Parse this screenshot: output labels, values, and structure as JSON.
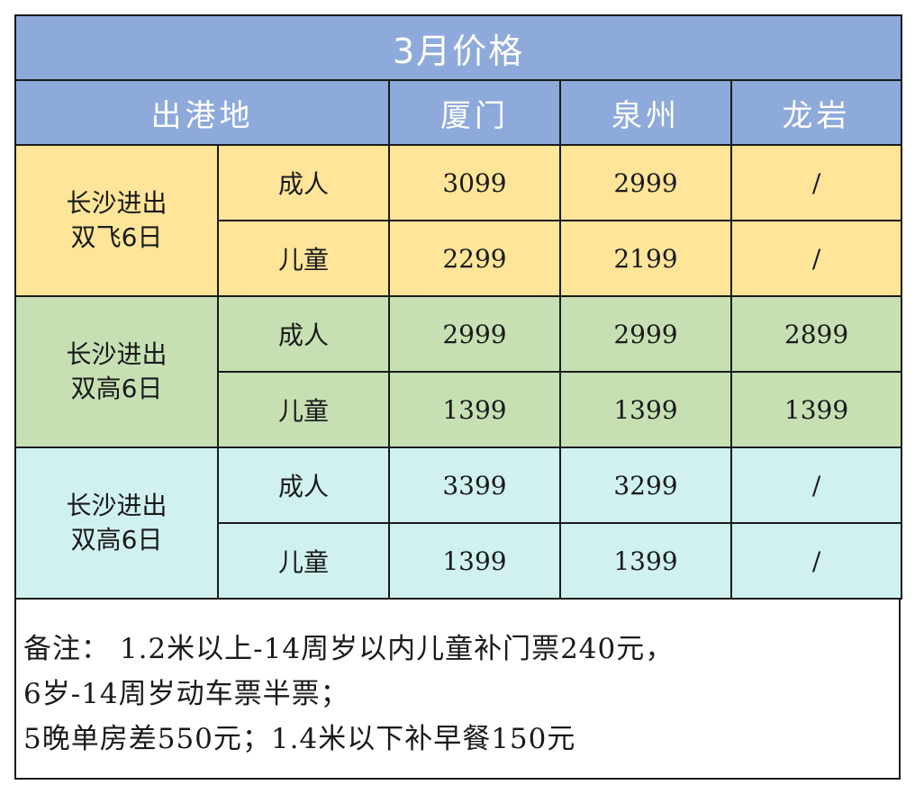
{
  "title": "3月价格",
  "header": {
    "departure_label": "出港地",
    "cities": [
      "厦门",
      "泉州",
      "龙岩"
    ]
  },
  "groups": [
    {
      "label_line1": "长沙进出",
      "label_line2": "双飞6日",
      "rows": [
        {
          "type": "成人",
          "prices": [
            "3099",
            "2999",
            "/"
          ]
        },
        {
          "type": "儿童",
          "prices": [
            "2299",
            "2199",
            "/"
          ]
        }
      ]
    },
    {
      "label_line1": "长沙进出",
      "label_line2": "双高6日",
      "rows": [
        {
          "type": "成人",
          "prices": [
            "2999",
            "2999",
            "2899"
          ]
        },
        {
          "type": "儿童",
          "prices": [
            "1399",
            "1399",
            "1399"
          ]
        }
      ]
    },
    {
      "label_line1": "长沙进出",
      "label_line2": "双高6日",
      "rows": [
        {
          "type": "成人",
          "prices": [
            "3399",
            "3299",
            "/"
          ]
        },
        {
          "type": "儿童",
          "prices": [
            "1399",
            "1399",
            "/"
          ]
        }
      ]
    }
  ],
  "notes": [
    "备注： 1.2米以上-14周岁以内儿童补门票240元，",
    "6岁-14周岁动车票半票；",
    "5晚单房差550元；1.4米以下补早餐150元"
  ],
  "colors": {
    "header": "#8eaadb",
    "group_1": "#fee599",
    "group_2": "#c6e0b4",
    "group_3": "#d0f1f0"
  }
}
